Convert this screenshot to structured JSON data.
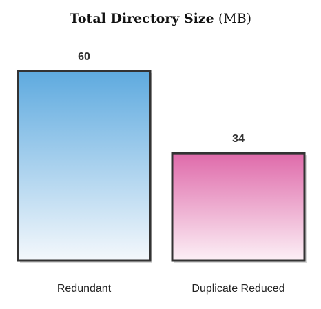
{
  "chart_data": {
    "type": "bar",
    "title": "Total Directory Size",
    "title_unit": "(MB)",
    "xlabel": "",
    "ylabel": "",
    "categories": [
      "Redundant",
      "Duplicate Reduced"
    ],
    "values": [
      60,
      34
    ],
    "data_labels": [
      "60",
      "34"
    ],
    "ylim": [
      0,
      60
    ],
    "grid": false,
    "legend": "none",
    "bar_colors": [
      {
        "top": "#5eaadf",
        "bottom": "#f4f8fc"
      },
      {
        "top": "#df6aaa",
        "bottom": "#fcf0f6"
      }
    ],
    "bar_border": "#333333"
  }
}
